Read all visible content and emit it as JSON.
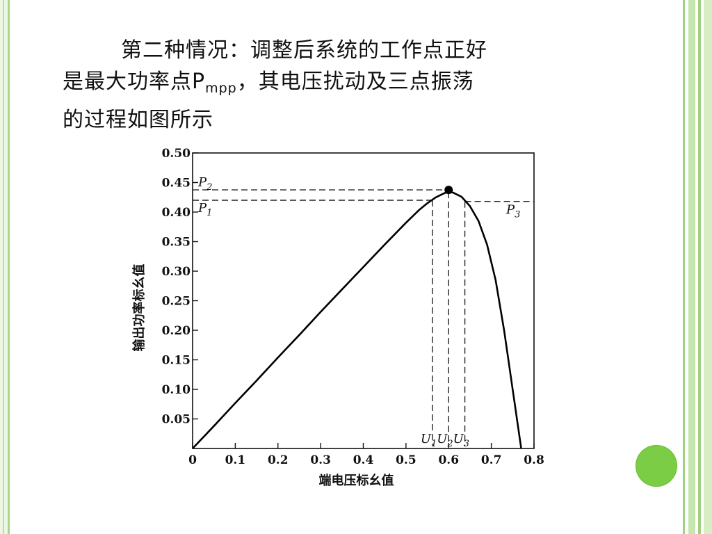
{
  "slide": {
    "line1": "第二种情况：调整后系统的工作点正好",
    "line2_a": "是最大功率点P",
    "line2_sub": "mpp",
    "line2_b": "，其电压扰动及三点振荡",
    "line3": "的过程如图所示"
  },
  "colors": {
    "accent": "#7ccd46",
    "border": "#a9d68a"
  },
  "chart_data": {
    "type": "line",
    "xlabel": "端电压标幺值",
    "ylabel": "输出功率标幺值",
    "xlim": [
      0,
      0.8
    ],
    "ylim": [
      0,
      0.5
    ],
    "xticks": [
      {
        "v": 0,
        "label": "0"
      },
      {
        "v": 0.1,
        "label": "0.1"
      },
      {
        "v": 0.2,
        "label": "0.2"
      },
      {
        "v": 0.3,
        "label": "0.3"
      },
      {
        "v": 0.4,
        "label": "0.4"
      },
      {
        "v": 0.5,
        "label": "0.5"
      },
      {
        "v": 0.6,
        "label": "0.6"
      },
      {
        "v": 0.7,
        "label": "0.7"
      },
      {
        "v": 0.8,
        "label": "0.8"
      }
    ],
    "yticks": [
      {
        "v": 0.05,
        "label": "0.05"
      },
      {
        "v": 0.1,
        "label": "0.10"
      },
      {
        "v": 0.15,
        "label": "0.15"
      },
      {
        "v": 0.2,
        "label": "0.20"
      },
      {
        "v": 0.25,
        "label": "0.25"
      },
      {
        "v": 0.3,
        "label": "0.30"
      },
      {
        "v": 0.35,
        "label": "0.35"
      },
      {
        "v": 0.4,
        "label": "0.40"
      },
      {
        "v": 0.45,
        "label": "0.45"
      },
      {
        "v": 0.5,
        "label": "0.50"
      }
    ],
    "curve": [
      [
        0,
        0
      ],
      [
        0.05,
        0.038
      ],
      [
        0.1,
        0.077
      ],
      [
        0.15,
        0.115
      ],
      [
        0.2,
        0.154
      ],
      [
        0.25,
        0.192
      ],
      [
        0.3,
        0.231
      ],
      [
        0.35,
        0.269
      ],
      [
        0.4,
        0.307
      ],
      [
        0.45,
        0.345
      ],
      [
        0.5,
        0.382
      ],
      [
        0.53,
        0.403
      ],
      [
        0.55,
        0.415
      ],
      [
        0.57,
        0.425
      ],
      [
        0.59,
        0.432
      ],
      [
        0.6,
        0.434
      ],
      [
        0.61,
        0.433
      ],
      [
        0.63,
        0.426
      ],
      [
        0.65,
        0.41
      ],
      [
        0.67,
        0.385
      ],
      [
        0.69,
        0.345
      ],
      [
        0.71,
        0.285
      ],
      [
        0.73,
        0.2
      ],
      [
        0.75,
        0.1
      ],
      [
        0.77,
        0
      ]
    ],
    "mpp": {
      "x": 0.6,
      "y": 0.434
    },
    "points": [
      {
        "name": "U1",
        "x": 0.562
      },
      {
        "name": "U2",
        "x": 0.6
      },
      {
        "name": "U3",
        "x": 0.638
      }
    ],
    "levels": [
      {
        "name": "P2",
        "y": 0.434
      },
      {
        "name": "P1",
        "y": 0.42
      },
      {
        "name": "P3",
        "y": 0.418
      }
    ]
  }
}
